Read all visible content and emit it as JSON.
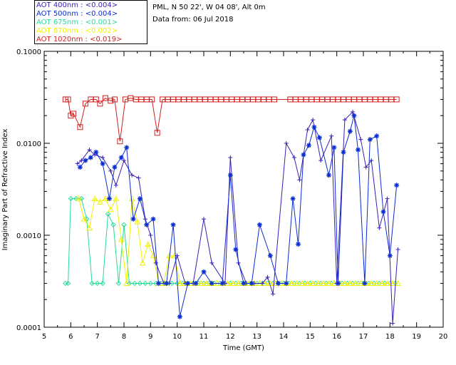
{
  "chart_data": {
    "type": "line",
    "ylabel": "Imaginary Part of Refractive Index",
    "xlabel": "Time (GMT)",
    "xlim": [
      5,
      20
    ],
    "ylim": [
      0.0001,
      0.1
    ],
    "yscale": "log",
    "x_ticks": [
      "5",
      "6",
      "7",
      "8",
      "9",
      "10",
      "11",
      "12",
      "13",
      "14",
      "15",
      "16",
      "17",
      "18",
      "19",
      "20"
    ],
    "y_ticks": [
      "0.0001",
      "0.0010",
      "0.0100",
      "0.1000"
    ],
    "header": {
      "site": "PML, N 50 22', W 04 08', Alt 0m",
      "date": "Data from: 06 Jul 2018"
    },
    "legend": [
      {
        "label": "AOT  400nm : <0.004>",
        "color": "#3c1eb4"
      },
      {
        "label": "AOT  500nm : <0.004>",
        "color": "#0a2dd2"
      },
      {
        "label": "AOT  675nm : <0.001>",
        "color": "#28dc96"
      },
      {
        "label": "AOT  870nm : <0.002>",
        "color": "#f0f000"
      },
      {
        "label": "AOT 1020nm : <0.019>",
        "color": "#d21e1e"
      }
    ],
    "series": [
      {
        "name": "AOT 400nm",
        "color": "#3c1eb4",
        "marker": "plus",
        "x": [
          6.25,
          6.4,
          6.7,
          6.9,
          7.2,
          7.5,
          7.7,
          8.0,
          8.3,
          8.55,
          8.8,
          9.0,
          9.2,
          9.5,
          9.7,
          10.0,
          10.3,
          10.6,
          11.0,
          11.3,
          11.8,
          12.0,
          12.3,
          12.6,
          12.9,
          13.2,
          13.4,
          13.6,
          14.1,
          14.4,
          14.6,
          14.9,
          15.1,
          15.4,
          15.8,
          16.0,
          16.3,
          16.6,
          16.9,
          17.1,
          17.3,
          17.6,
          17.9,
          18.1,
          18.3
        ],
        "y": [
          0.006,
          0.0065,
          0.0085,
          0.0075,
          0.007,
          0.005,
          0.0035,
          0.0065,
          0.0045,
          0.0042,
          0.0015,
          0.001,
          0.0005,
          0.0003,
          0.0003,
          0.0006,
          0.0003,
          0.0003,
          0.0015,
          0.0005,
          0.0003,
          0.007,
          0.0005,
          0.0003,
          0.0003,
          0.0003,
          0.00035,
          0.00023,
          0.01,
          0.007,
          0.004,
          0.014,
          0.018,
          0.0065,
          0.012,
          0.0003,
          0.018,
          0.022,
          0.011,
          0.0055,
          0.0065,
          0.0012,
          0.0025,
          0.00011,
          0.0007
        ]
      },
      {
        "name": "AOT 500nm",
        "color": "#0a2dd2",
        "marker": "star",
        "x": [
          6.35,
          6.55,
          6.75,
          6.95,
          7.2,
          7.45,
          7.65,
          7.9,
          8.1,
          8.35,
          8.6,
          8.85,
          9.1,
          9.3,
          9.6,
          9.85,
          10.1,
          10.4,
          10.7,
          11.0,
          11.3,
          11.7,
          12.0,
          12.2,
          12.5,
          12.8,
          13.1,
          13.5,
          13.8,
          14.1,
          14.35,
          14.55,
          14.75,
          14.95,
          15.15,
          15.35,
          15.7,
          15.9,
          16.05,
          16.25,
          16.5,
          16.65,
          16.8,
          17.05,
          17.25,
          17.5,
          17.75,
          18.0,
          18.25
        ],
        "y": [
          0.0055,
          0.0065,
          0.007,
          0.008,
          0.006,
          0.0025,
          0.0055,
          0.007,
          0.009,
          0.0015,
          0.0025,
          0.0013,
          0.0015,
          0.0003,
          0.0003,
          0.0013,
          0.00013,
          0.0003,
          0.0003,
          0.0004,
          0.0003,
          0.0003,
          0.0045,
          0.0007,
          0.0003,
          0.0003,
          0.0013,
          0.0006,
          0.0003,
          0.0003,
          0.0025,
          0.0008,
          0.0075,
          0.0095,
          0.015,
          0.0115,
          0.0045,
          0.009,
          0.0003,
          0.008,
          0.0135,
          0.02,
          0.0085,
          0.0003,
          0.011,
          0.012,
          0.0018,
          0.0006,
          0.0035
        ]
      },
      {
        "name": "AOT 675nm",
        "color": "#28dc96",
        "marker": "diamond",
        "x": [
          5.8,
          5.9,
          6.0,
          6.2,
          6.4,
          6.6,
          6.8,
          7.0,
          7.2,
          7.4,
          7.6,
          7.8,
          8.0,
          8.2,
          8.4,
          8.6,
          8.8,
          9.0,
          9.2,
          9.4,
          9.6,
          9.8,
          10.0,
          10.2,
          10.4,
          10.6,
          10.8,
          11.0,
          11.2,
          11.4,
          11.6,
          11.8,
          12.0,
          12.2,
          12.4,
          12.6,
          12.8,
          13.0,
          13.2,
          13.4,
          13.6,
          13.8,
          14.0,
          14.2,
          14.4,
          14.6,
          14.8,
          15.0,
          15.2,
          15.4,
          15.6,
          15.8,
          16.0,
          16.2,
          16.4,
          16.6,
          16.8,
          17.0,
          17.2,
          17.4,
          17.6,
          17.8,
          18.0,
          18.2
        ],
        "y": [
          0.0003,
          0.0003,
          0.0025,
          0.0025,
          0.0025,
          0.0015,
          0.0003,
          0.0003,
          0.0003,
          0.0017,
          0.0013,
          0.0003,
          0.0013,
          0.0003,
          0.0003,
          0.0003,
          0.0003,
          0.0003,
          0.0003,
          0.0003,
          0.0003,
          0.0003,
          0.0003,
          0.0003,
          0.0003,
          0.0003,
          0.0003,
          0.0003,
          0.0003,
          0.0003,
          0.0003,
          0.0003,
          0.0003,
          0.0003,
          0.0003,
          0.0003,
          0.0003,
          0.0003,
          0.0003,
          0.0003,
          0.0003,
          0.0003,
          0.0003,
          0.0003,
          0.0003,
          0.0003,
          0.0003,
          0.0003,
          0.0003,
          0.0003,
          0.0003,
          0.0003,
          0.0003,
          0.0003,
          0.0003,
          0.0003,
          0.0003,
          0.0003,
          0.0003,
          0.0003,
          0.0003,
          0.0003,
          0.0003,
          0.0003
        ]
      },
      {
        "name": "AOT 870nm",
        "color": "#f0f000",
        "marker": "triangle",
        "x": [
          6.3,
          6.5,
          6.7,
          6.9,
          7.1,
          7.3,
          7.5,
          7.7,
          7.9,
          8.1,
          8.3,
          8.5,
          8.7,
          8.9,
          9.1,
          9.3,
          9.5,
          9.7,
          9.9,
          10.1,
          10.3,
          10.5,
          10.7,
          10.9,
          11.1,
          11.3,
          11.5,
          11.7,
          11.9,
          12.1,
          12.3,
          12.5,
          12.7,
          12.9,
          13.1,
          13.3,
          13.5,
          13.7,
          13.9,
          14.1,
          14.3,
          14.5,
          14.7,
          14.9,
          15.1,
          15.3,
          15.5,
          15.7,
          15.9,
          16.1,
          16.3,
          16.5,
          16.7,
          16.9,
          17.1,
          17.3,
          17.5,
          17.7,
          17.9,
          18.1,
          18.3
        ],
        "y": [
          0.0025,
          0.0015,
          0.0012,
          0.0025,
          0.0023,
          0.0025,
          0.0019,
          0.0025,
          0.0009,
          0.0003,
          0.0025,
          0.0014,
          0.0005,
          0.0008,
          0.0006,
          0.0003,
          0.0003,
          0.0006,
          0.0006,
          0.0003,
          0.0003,
          0.0003,
          0.0003,
          0.0003,
          0.0003,
          0.0003,
          0.0003,
          0.0003,
          0.0003,
          0.0003,
          0.0003,
          0.0003,
          0.0003,
          0.0003,
          0.0003,
          0.0003,
          0.0003,
          0.0003,
          0.0003,
          0.0003,
          0.0003,
          0.0003,
          0.0003,
          0.0003,
          0.0003,
          0.0003,
          0.0003,
          0.0003,
          0.0003,
          0.0003,
          0.0003,
          0.0003,
          0.0003,
          0.0003,
          0.0003,
          0.0003,
          0.0003,
          0.0003,
          0.0003,
          0.0003,
          0.0003
        ]
      },
      {
        "name": "AOT 1020nm",
        "color": "#d21e1e",
        "marker": "square",
        "x": [
          5.8,
          5.9,
          6.0,
          6.1,
          6.35,
          6.55,
          6.75,
          6.95,
          7.1,
          7.3,
          7.5,
          7.65,
          7.85,
          8.05,
          8.25,
          8.45,
          8.65,
          8.85,
          9.05,
          9.25,
          9.45,
          9.65,
          9.85,
          10.05,
          10.25,
          10.45,
          10.65,
          10.85,
          11.05,
          11.25,
          11.45,
          11.65,
          11.85,
          12.05,
          12.25,
          12.45,
          12.65,
          12.85,
          13.05,
          13.25,
          13.45,
          13.65,
          14.25,
          14.45,
          14.65,
          14.85,
          15.05,
          15.25,
          15.45,
          15.65,
          15.85,
          16.05,
          16.25,
          16.45,
          16.65,
          16.85,
          17.05,
          17.25,
          17.45,
          17.65,
          17.85,
          18.05,
          18.25
        ],
        "y": [
          0.03,
          0.03,
          0.02,
          0.021,
          0.015,
          0.027,
          0.03,
          0.03,
          0.027,
          0.031,
          0.029,
          0.03,
          0.0105,
          0.03,
          0.031,
          0.03,
          0.03,
          0.03,
          0.03,
          0.013,
          0.03,
          0.03,
          0.03,
          0.03,
          0.03,
          0.03,
          0.03,
          0.03,
          0.03,
          0.03,
          0.03,
          0.03,
          0.03,
          0.03,
          0.03,
          0.03,
          0.03,
          0.03,
          0.03,
          0.03,
          0.03,
          0.03,
          0.03,
          0.03,
          0.03,
          0.03,
          0.03,
          0.03,
          0.03,
          0.03,
          0.03,
          0.03,
          0.03,
          0.03,
          0.03,
          0.03,
          0.03,
          0.03,
          0.03,
          0.03,
          0.03,
          0.03,
          0.03
        ]
      }
    ]
  }
}
